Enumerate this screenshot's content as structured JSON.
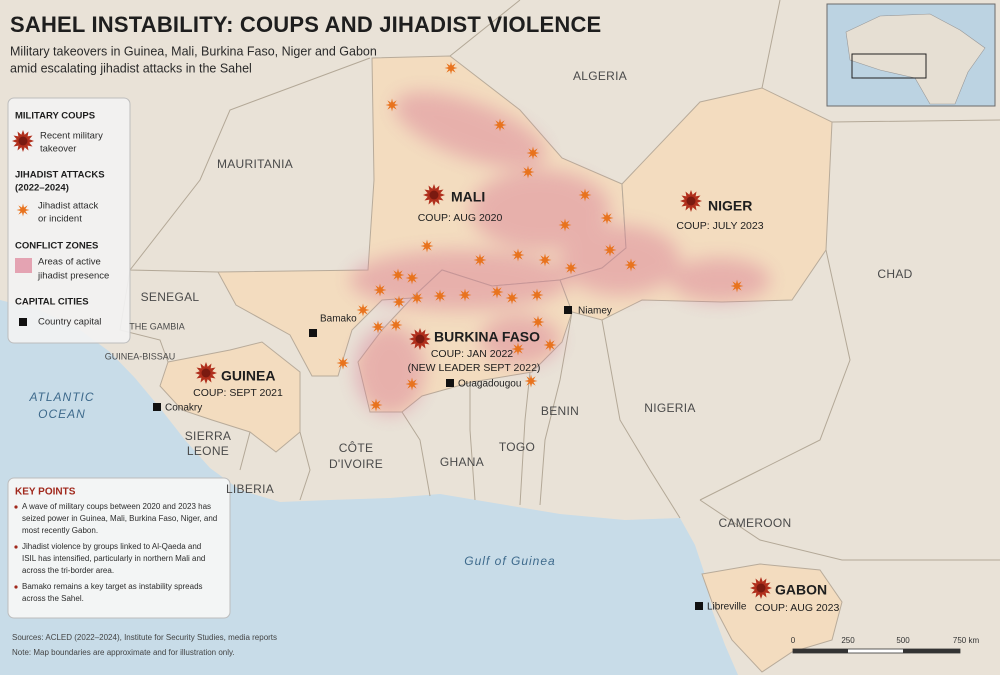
{
  "header": {
    "title": "SAHEL INSTABILITY: COUPS AND JIHADIST VIOLENCE",
    "subtitle": [
      "Military takeovers in Guinea, Mali, Burkina Faso, Niger and Gabon",
      "amid escalating jihadist attacks in the Sahel"
    ]
  },
  "legend": {
    "sections": [
      {
        "title": [
          "MILITARY COUPS"
        ],
        "label": [
          "Recent military",
          "takeover"
        ]
      },
      {
        "title": [
          "JIHADIST ATTACKS",
          "(2022–2024)"
        ],
        "label": [
          "Jihadist attack",
          "or incident"
        ]
      },
      {
        "title": [
          "CONFLICT ZONES"
        ],
        "label": [
          "Areas of active",
          "jihadist presence"
        ]
      },
      {
        "title": [
          "CAPITAL CITIES"
        ],
        "label": [
          "Country capital"
        ]
      }
    ]
  },
  "countries": [
    [
      "ALGERIA"
    ],
    [
      "MAURITANIA"
    ],
    [
      "CHAD"
    ],
    [
      "SENEGAL"
    ],
    [
      "THE GAMBIA"
    ],
    [
      "GUINEA-BISSAU"
    ],
    [
      "SIERRA",
      "LEONE"
    ],
    [
      "LIBERIA"
    ],
    [
      "CÔTE",
      "D'IVOIRE"
    ],
    [
      "GHANA"
    ],
    [
      "TOGO"
    ],
    [
      "BENIN"
    ],
    [
      "NIGERIA"
    ],
    [
      "CAMEROON"
    ]
  ],
  "coup_countries": [
    {
      "name": "MALI",
      "coup": [
        "COUP: AUG 2020"
      ]
    },
    {
      "name": "NIGER",
      "coup": [
        "COUP: JULY 2023"
      ]
    },
    {
      "name": "BURKINA FASO",
      "coup": [
        "COUP: JAN 2022",
        "(NEW LEADER SEPT 2022)"
      ]
    },
    {
      "name": "GUINEA",
      "coup": [
        "COUP: SEPT 2021"
      ]
    },
    {
      "name": "GABON",
      "coup": [
        "COUP: AUG 2023"
      ]
    }
  ],
  "capitals": [
    "Bamako",
    "Niamey",
    "Ouagadougou",
    "Conakry",
    "Libreville"
  ],
  "water": {
    "atlantic": [
      "ATLANTIC",
      "OCEAN"
    ],
    "gulf": "Gulf of Guinea"
  },
  "key_points": {
    "title": "KEY POINTS",
    "items": [
      [
        "A wave of military coups between 2020 and 2023 has",
        "seized power in Guinea, Mali, Burkina Faso, Niger, and",
        "most recently Gabon."
      ],
      [
        "Jihadist violence by groups linked to Al-Qaeda and",
        "ISIL has intensified, particularly in northern Mali and",
        "across the tri-border area."
      ],
      [
        "Bamako remains a key target as instability spreads",
        "across the Sahel."
      ]
    ]
  },
  "sources": "Sources: ACLED (2022–2024), Institute for Security Studies, media reports",
  "note": "Note: Map boundaries are approximate and for illustration only.",
  "scale": [
    "0",
    "250",
    "500",
    "750 km"
  ]
}
